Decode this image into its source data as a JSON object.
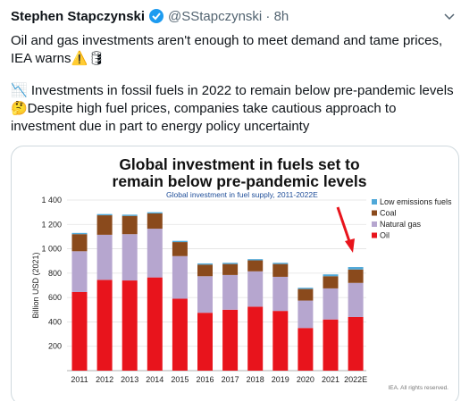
{
  "tweet": {
    "name": "Stephen Stapczynski",
    "handle": "@SStapczynski · 8h",
    "lines": [
      "Oil and gas investments aren't enough to meet demand and tame prices,",
      "IEA warns⚠️🛢",
      "📉 Investments in fossil fuels in 2022 to remain below pre-pandemic levels",
      "🤔Despite high fuel prices, companies take cautious approach to",
      "investment due in part to energy policy uncertainty"
    ]
  },
  "chart_data": {
    "type": "stacked_bar",
    "title": [
      "Global investment in fuels set to",
      "remain below pre-pandemic levels"
    ],
    "subtitle": "Global investment in fuel supply, 2011-2022E",
    "y_label": "Billion USD (2021)",
    "source": "IEA. All rights reserved.",
    "categories": [
      "2011",
      "2012",
      "2013",
      "2014",
      "2015",
      "2016",
      "2017",
      "2018",
      "2019",
      "2020",
      "2021",
      "2022E"
    ],
    "series": [
      {
        "name": "Oil",
        "color": "#e8141c",
        "values": [
          645,
          745,
          740,
          765,
          590,
          475,
          500,
          525,
          490,
          350,
          420,
          440
        ]
      },
      {
        "name": "Natural gas",
        "color": "#b6a6cf",
        "values": [
          335,
          370,
          380,
          400,
          350,
          300,
          285,
          290,
          280,
          225,
          255,
          280
        ]
      },
      {
        "name": "Coal",
        "color": "#8a4a1c",
        "values": [
          140,
          160,
          150,
          125,
          115,
          95,
          90,
          90,
          105,
          95,
          100,
          110
        ]
      },
      {
        "name": "Low emissions fuels",
        "color": "#4fa8d8",
        "values": [
          10,
          10,
          10,
          10,
          10,
          10,
          10,
          10,
          10,
          10,
          15,
          20
        ]
      }
    ],
    "ylim": [
      0,
      1400
    ],
    "yticks": [
      200,
      400,
      600,
      800,
      {
        "value": 1000,
        "label": "1 000"
      },
      {
        "value": 1200,
        "label": "1 200"
      },
      {
        "value": 1400,
        "label": "1 400"
      }
    ],
    "grid": true
  }
}
